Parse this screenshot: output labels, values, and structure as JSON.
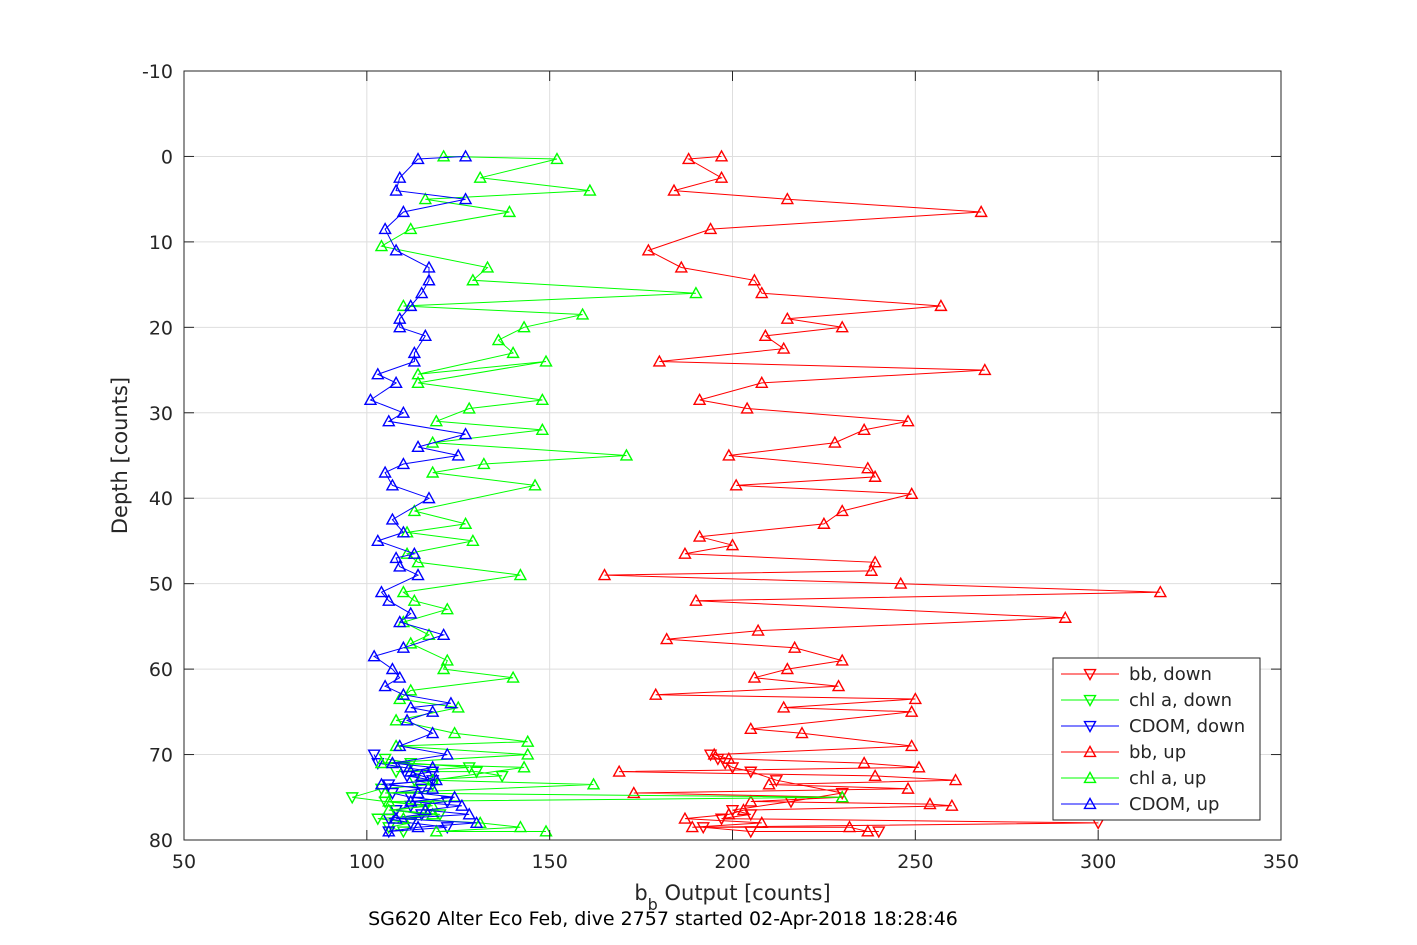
{
  "chart_data": {
    "type": "line",
    "title": "SG620 Alter Eco Feb, dive 2757 started 02-Apr-2018 18:28:46",
    "xlabel": {
      "base": "b",
      "sub": "b",
      "rest": " Output [counts]"
    },
    "ylabel": "Depth [counts]",
    "xlim": [
      50,
      350
    ],
    "ylim": [
      -10,
      80
    ],
    "y_reversed": true,
    "grid": true,
    "legend_position": "lower-right",
    "xticks": [
      50,
      100,
      150,
      200,
      250,
      300,
      350
    ],
    "yticks": [
      -10,
      0,
      10,
      20,
      30,
      40,
      50,
      60,
      70,
      80
    ],
    "series": [
      {
        "name": "bb, down",
        "color": "#ff0000",
        "marker": "down",
        "points": [
          [
            194,
            70
          ],
          [
            196,
            70.5
          ],
          [
            198,
            71
          ],
          [
            200,
            71.5
          ],
          [
            205,
            72
          ],
          [
            212,
            73
          ],
          [
            230,
            74.5
          ],
          [
            216,
            75.5
          ],
          [
            200,
            76.5
          ],
          [
            205,
            77
          ],
          [
            197,
            77.5
          ],
          [
            300,
            78
          ],
          [
            192,
            78.5
          ],
          [
            205,
            79
          ],
          [
            240,
            79
          ]
        ]
      },
      {
        "name": "chl a, down",
        "color": "#00ff00",
        "marker": "down",
        "points": [
          [
            105,
            70.5
          ],
          [
            112,
            71
          ],
          [
            128,
            71.5
          ],
          [
            108,
            72
          ],
          [
            130,
            72
          ],
          [
            137,
            72.5
          ],
          [
            113,
            73
          ],
          [
            118,
            73.5
          ],
          [
            104,
            74
          ],
          [
            96,
            75
          ],
          [
            105,
            75.5
          ],
          [
            116,
            76
          ],
          [
            108,
            76.5
          ],
          [
            120,
            77
          ],
          [
            103,
            77.5
          ],
          [
            112,
            78
          ],
          [
            106,
            78.5
          ],
          [
            110,
            79
          ]
        ]
      },
      {
        "name": "CDOM, down",
        "color": "#0000ff",
        "marker": "down",
        "points": [
          [
            102,
            70
          ],
          [
            103,
            71
          ],
          [
            110,
            71.5
          ],
          [
            118,
            72
          ],
          [
            111,
            72.5
          ],
          [
            118,
            73
          ],
          [
            106,
            73.5
          ],
          [
            115,
            74
          ],
          [
            107,
            74.5
          ],
          [
            112,
            75
          ],
          [
            122,
            75.5
          ],
          [
            112,
            76
          ],
          [
            108,
            76.5
          ],
          [
            115,
            77
          ],
          [
            106,
            77.5
          ],
          [
            112,
            78
          ],
          [
            122,
            78.5
          ],
          [
            106,
            79
          ]
        ]
      },
      {
        "name": "bb, up",
        "color": "#ff0000",
        "marker": "up",
        "points": [
          [
            237,
            79
          ],
          [
            232,
            78.5
          ],
          [
            189,
            78.5
          ],
          [
            208,
            78
          ],
          [
            187,
            77.5
          ],
          [
            199,
            77
          ],
          [
            203,
            76.5
          ],
          [
            260,
            76
          ],
          [
            254,
            75.8
          ],
          [
            205,
            75.5
          ],
          [
            230,
            75
          ],
          [
            173,
            74.5
          ],
          [
            248,
            74
          ],
          [
            210,
            73.5
          ],
          [
            261,
            73
          ],
          [
            239,
            72.5
          ],
          [
            169,
            72
          ],
          [
            251,
            71.5
          ],
          [
            236,
            71
          ],
          [
            199,
            70.5
          ],
          [
            195,
            70
          ],
          [
            249,
            69
          ],
          [
            219,
            67.5
          ],
          [
            205,
            67
          ],
          [
            249,
            65
          ],
          [
            214,
            64.5
          ],
          [
            250,
            63.5
          ],
          [
            179,
            63
          ],
          [
            229,
            62
          ],
          [
            206,
            61
          ],
          [
            215,
            60
          ],
          [
            230,
            59
          ],
          [
            217,
            57.5
          ],
          [
            182,
            56.5
          ],
          [
            207,
            55.5
          ],
          [
            291,
            54
          ],
          [
            190,
            52
          ],
          [
            317,
            51
          ],
          [
            246,
            50
          ],
          [
            165,
            49
          ],
          [
            238,
            48.5
          ],
          [
            239,
            47.5
          ],
          [
            187,
            46.5
          ],
          [
            200,
            45.5
          ],
          [
            191,
            44.5
          ],
          [
            225,
            43
          ],
          [
            230,
            41.5
          ],
          [
            249,
            39.5
          ],
          [
            201,
            38.5
          ],
          [
            239,
            37.5
          ],
          [
            237,
            36.5
          ],
          [
            199,
            35
          ],
          [
            228,
            33.5
          ],
          [
            236,
            32
          ],
          [
            248,
            31
          ],
          [
            204,
            29.5
          ],
          [
            191,
            28.5
          ],
          [
            208,
            26.5
          ],
          [
            269,
            25
          ],
          [
            180,
            24
          ],
          [
            214,
            22.5
          ],
          [
            209,
            21
          ],
          [
            230,
            20
          ],
          [
            215,
            19
          ],
          [
            257,
            17.5
          ],
          [
            208,
            16
          ],
          [
            206,
            14.5
          ],
          [
            186,
            13
          ],
          [
            177,
            11
          ],
          [
            194,
            8.5
          ],
          [
            268,
            6.5
          ],
          [
            215,
            5
          ],
          [
            184,
            4
          ],
          [
            197,
            2.5
          ],
          [
            188,
            0.3
          ],
          [
            197,
            0
          ]
        ]
      },
      {
        "name": "chl a, up",
        "color": "#00ff00",
        "marker": "up",
        "points": [
          [
            149,
            79
          ],
          [
            119,
            79
          ],
          [
            142,
            78.5
          ],
          [
            131,
            78
          ],
          [
            110,
            77.5
          ],
          [
            118,
            77
          ],
          [
            106,
            76.5
          ],
          [
            118,
            76
          ],
          [
            106,
            75.5
          ],
          [
            230,
            75
          ],
          [
            105,
            74.5
          ],
          [
            162,
            73.5
          ],
          [
            118,
            73
          ],
          [
            143,
            71.5
          ],
          [
            104,
            71
          ],
          [
            144,
            70
          ],
          [
            108,
            69
          ],
          [
            144,
            68.5
          ],
          [
            124,
            67.5
          ],
          [
            108,
            66
          ],
          [
            125,
            64.5
          ],
          [
            109,
            63.5
          ],
          [
            112,
            62.5
          ],
          [
            140,
            61
          ],
          [
            121,
            60
          ],
          [
            122,
            59
          ],
          [
            112,
            57
          ],
          [
            117,
            56
          ],
          [
            110,
            54.5
          ],
          [
            122,
            53
          ],
          [
            113,
            52
          ],
          [
            110,
            51
          ],
          [
            142,
            49
          ],
          [
            114,
            47.5
          ],
          [
            111,
            46.5
          ],
          [
            129,
            45
          ],
          [
            111,
            44
          ],
          [
            127,
            43
          ],
          [
            113,
            41.5
          ],
          [
            146,
            38.5
          ],
          [
            118,
            37
          ],
          [
            132,
            36
          ],
          [
            171,
            35
          ],
          [
            118,
            33.5
          ],
          [
            148,
            32
          ],
          [
            119,
            31
          ],
          [
            128,
            29.5
          ],
          [
            148,
            28.5
          ],
          [
            114,
            26.5
          ],
          [
            149,
            24
          ],
          [
            114,
            25.5
          ],
          [
            140,
            23
          ],
          [
            136,
            21.5
          ],
          [
            143,
            20
          ],
          [
            159,
            18.5
          ],
          [
            110,
            17.5
          ],
          [
            190,
            16
          ],
          [
            129,
            14.5
          ],
          [
            133,
            13
          ],
          [
            104,
            10.5
          ],
          [
            112,
            8.5
          ],
          [
            139,
            6.5
          ],
          [
            116,
            5
          ],
          [
            161,
            4
          ],
          [
            131,
            2.5
          ],
          [
            152,
            0.3
          ],
          [
            121,
            0
          ]
        ]
      },
      {
        "name": "CDOM, up",
        "color": "#0000ff",
        "marker": "up",
        "points": [
          [
            106,
            79
          ],
          [
            114,
            78.5
          ],
          [
            130,
            78
          ],
          [
            108,
            77.5
          ],
          [
            128,
            77
          ],
          [
            116,
            76.5
          ],
          [
            126,
            76
          ],
          [
            112,
            75.5
          ],
          [
            124,
            75
          ],
          [
            114,
            74.5
          ],
          [
            118,
            74
          ],
          [
            104,
            73.5
          ],
          [
            119,
            73
          ],
          [
            115,
            72.5
          ],
          [
            112,
            72
          ],
          [
            118,
            71.5
          ],
          [
            107,
            71
          ],
          [
            122,
            70
          ],
          [
            109,
            69
          ],
          [
            118,
            67.5
          ],
          [
            111,
            66
          ],
          [
            118,
            65
          ],
          [
            112,
            64.5
          ],
          [
            123,
            64
          ],
          [
            110,
            63
          ],
          [
            105,
            62
          ],
          [
            109,
            61
          ],
          [
            107,
            60
          ],
          [
            102,
            58.5
          ],
          [
            110,
            57.5
          ],
          [
            121,
            56
          ],
          [
            109,
            54.5
          ],
          [
            112,
            53.5
          ],
          [
            106,
            52
          ],
          [
            104,
            51
          ],
          [
            114,
            49
          ],
          [
            109,
            48
          ],
          [
            108,
            47
          ],
          [
            113,
            46.5
          ],
          [
            103,
            45
          ],
          [
            110,
            44
          ],
          [
            107,
            42.5
          ],
          [
            117,
            40
          ],
          [
            107,
            38.5
          ],
          [
            105,
            37
          ],
          [
            110,
            36
          ],
          [
            125,
            35
          ],
          [
            114,
            34
          ],
          [
            127,
            32.5
          ],
          [
            106,
            31
          ],
          [
            110,
            30
          ],
          [
            101,
            28.5
          ],
          [
            108,
            26.5
          ],
          [
            103,
            25.5
          ],
          [
            113,
            24
          ],
          [
            113,
            23
          ],
          [
            116,
            21
          ],
          [
            109,
            20
          ],
          [
            109,
            19
          ],
          [
            112,
            17.5
          ],
          [
            115,
            16
          ],
          [
            117,
            14.5
          ],
          [
            117,
            13
          ],
          [
            108,
            11
          ],
          [
            105,
            8.5
          ],
          [
            110,
            6.5
          ],
          [
            127,
            5
          ],
          [
            108,
            4
          ],
          [
            109,
            2.5
          ],
          [
            114,
            0.3
          ],
          [
            127,
            0
          ]
        ]
      }
    ]
  }
}
